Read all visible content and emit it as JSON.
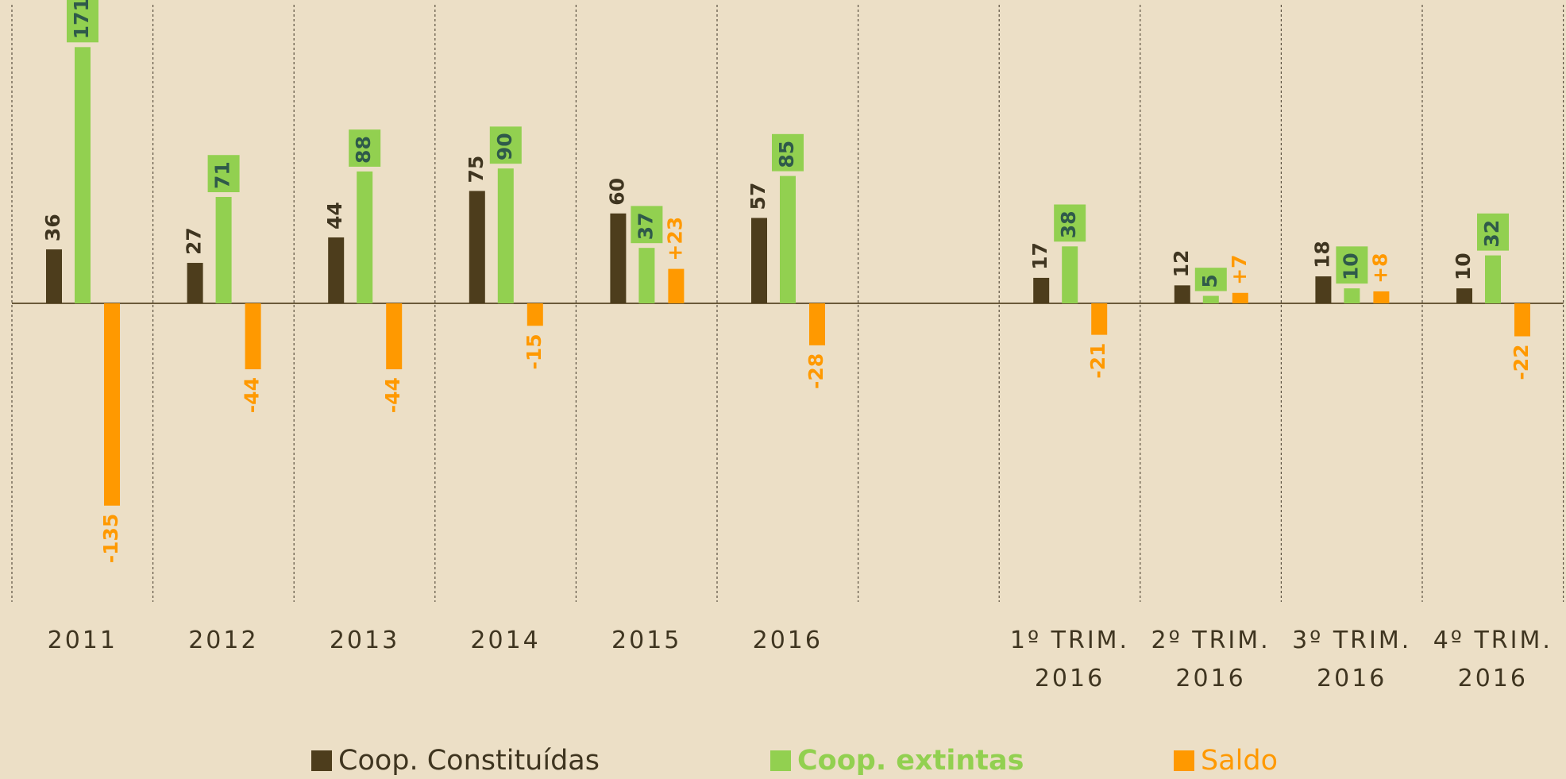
{
  "chart_data": {
    "type": "bar",
    "categories": [
      "2011",
      "2012",
      "2013",
      "2014",
      "2015",
      "2016",
      null,
      "1º TRIM. 2016",
      "2º TRIM. 2016",
      "3º TRIM. 2016",
      "4º TRIM. 2016"
    ],
    "series": [
      {
        "name": "Coop. Constituídas",
        "color": "#4d3d1c",
        "values": [
          36,
          27,
          44,
          75,
          60,
          57,
          null,
          17,
          12,
          18,
          10
        ]
      },
      {
        "name": "Coop. extintas",
        "color": "#92d050",
        "values": [
          171,
          71,
          88,
          90,
          37,
          85,
          null,
          38,
          5,
          10,
          32
        ]
      },
      {
        "name": "Saldo",
        "color": "#ff9900",
        "values": [
          -135,
          -44,
          -44,
          -15,
          23,
          -28,
          null,
          -21,
          7,
          8,
          -22
        ],
        "value_labels": [
          "-135",
          "-44",
          "-44",
          "-15",
          "+23",
          "-28",
          null,
          "-21",
          "+7",
          "+8",
          "-22"
        ]
      }
    ],
    "legend": "bottom"
  }
}
